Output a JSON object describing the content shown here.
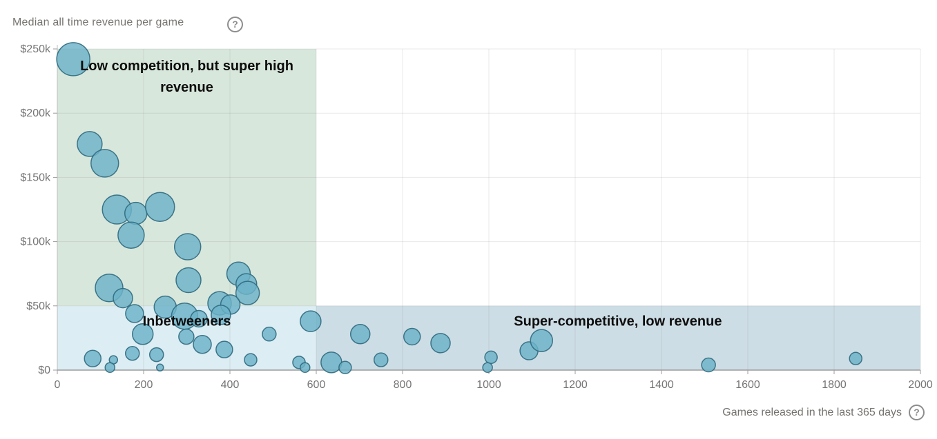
{
  "header": {
    "title": "Median all time revenue per game",
    "help": "?"
  },
  "x_axis_label": {
    "text": "Games released in the last 365 days",
    "help": "?"
  },
  "chart_data": {
    "type": "scatter",
    "title": "Median all time revenue per game",
    "xlabel": "Games released in the last 365 days",
    "ylabel": "Median all time revenue per game",
    "xlim": [
      0,
      2000
    ],
    "ylim": [
      0,
      250000
    ],
    "x_ticks": [
      0,
      200,
      400,
      600,
      800,
      1000,
      1200,
      1400,
      1600,
      1800,
      2000
    ],
    "y_ticks": [
      0,
      50000,
      100000,
      150000,
      200000,
      250000
    ],
    "y_tick_labels": [
      "$0",
      "$50k",
      "$100k",
      "$150k",
      "$200k",
      "$250k"
    ],
    "grid": true,
    "legend": "none",
    "bubble_color": "#6db2c8",
    "bubble_stroke": "#2f697d",
    "regions": [
      {
        "name": "low-competition-high-revenue",
        "x0": 0,
        "x1": 600,
        "y0": 50000,
        "y1": 250000,
        "color": "#d8e7dc"
      },
      {
        "name": "inbetweeners",
        "x0": 0,
        "x1": 600,
        "y0": 0,
        "y1": 50000,
        "color": "#dcedf3"
      },
      {
        "name": "super-competitive-low-revenue",
        "x0": 600,
        "x1": 2000,
        "y0": 0,
        "y1": 50000,
        "color": "#cddde5"
      }
    ],
    "annotations": [
      {
        "name": "annotation-low-competition",
        "lines": [
          "Low competition, but super high",
          "revenue"
        ],
        "x": 300,
        "y": 228000
      },
      {
        "name": "annotation-inbetweeners",
        "lines": [
          "Inbetweeners"
        ],
        "x": 300,
        "y": 37500
      },
      {
        "name": "annotation-super-competitive",
        "lines": [
          "Super-competitive, low revenue"
        ],
        "x": 1299,
        "y": 37500
      }
    ],
    "points": [
      {
        "x": 37,
        "y": 242000,
        "r": 24
      },
      {
        "x": 75,
        "y": 176000,
        "r": 18
      },
      {
        "x": 110,
        "y": 161000,
        "r": 20
      },
      {
        "x": 138,
        "y": 125000,
        "r": 21
      },
      {
        "x": 182,
        "y": 122000,
        "r": 16
      },
      {
        "x": 238,
        "y": 127000,
        "r": 21
      },
      {
        "x": 171,
        "y": 105000,
        "r": 19
      },
      {
        "x": 302,
        "y": 96000,
        "r": 19
      },
      {
        "x": 304,
        "y": 70000,
        "r": 18
      },
      {
        "x": 120,
        "y": 64000,
        "r": 20
      },
      {
        "x": 152,
        "y": 56000,
        "r": 14
      },
      {
        "x": 420,
        "y": 75000,
        "r": 17
      },
      {
        "x": 438,
        "y": 67000,
        "r": 15
      },
      {
        "x": 441,
        "y": 60000,
        "r": 17
      },
      {
        "x": 376,
        "y": 52000,
        "r": 17
      },
      {
        "x": 401,
        "y": 51000,
        "r": 14
      },
      {
        "x": 250,
        "y": 49000,
        "r": 16
      },
      {
        "x": 295,
        "y": 42000,
        "r": 19
      },
      {
        "x": 179,
        "y": 44000,
        "r": 13
      },
      {
        "x": 379,
        "y": 43000,
        "r": 14
      },
      {
        "x": 198,
        "y": 28000,
        "r": 15
      },
      {
        "x": 299,
        "y": 26000,
        "r": 11
      },
      {
        "x": 328,
        "y": 40000,
        "r": 12
      },
      {
        "x": 336,
        "y": 20000,
        "r": 13
      },
      {
        "x": 387,
        "y": 16000,
        "r": 12
      },
      {
        "x": 230,
        "y": 12000,
        "r": 10
      },
      {
        "x": 491,
        "y": 28000,
        "r": 10
      },
      {
        "x": 587,
        "y": 38000,
        "r": 15
      },
      {
        "x": 82,
        "y": 9000,
        "r": 12
      },
      {
        "x": 130,
        "y": 8000,
        "r": 6
      },
      {
        "x": 122,
        "y": 2000,
        "r": 7
      },
      {
        "x": 174,
        "y": 13000,
        "r": 10
      },
      {
        "x": 238,
        "y": 2000,
        "r": 5
      },
      {
        "x": 448,
        "y": 8000,
        "r": 9
      },
      {
        "x": 560,
        "y": 6000,
        "r": 9
      },
      {
        "x": 574,
        "y": 2000,
        "r": 7
      },
      {
        "x": 635,
        "y": 6000,
        "r": 15
      },
      {
        "x": 667,
        "y": 2000,
        "r": 9
      },
      {
        "x": 702,
        "y": 28000,
        "r": 14
      },
      {
        "x": 750,
        "y": 8000,
        "r": 10
      },
      {
        "x": 822,
        "y": 26000,
        "r": 12
      },
      {
        "x": 888,
        "y": 21000,
        "r": 14
      },
      {
        "x": 1005,
        "y": 10000,
        "r": 9
      },
      {
        "x": 997,
        "y": 2000,
        "r": 7
      },
      {
        "x": 1093,
        "y": 15000,
        "r": 13
      },
      {
        "x": 1122,
        "y": 23000,
        "r": 16
      },
      {
        "x": 1509,
        "y": 4000,
        "r": 10
      },
      {
        "x": 1850,
        "y": 9000,
        "r": 9
      }
    ]
  }
}
